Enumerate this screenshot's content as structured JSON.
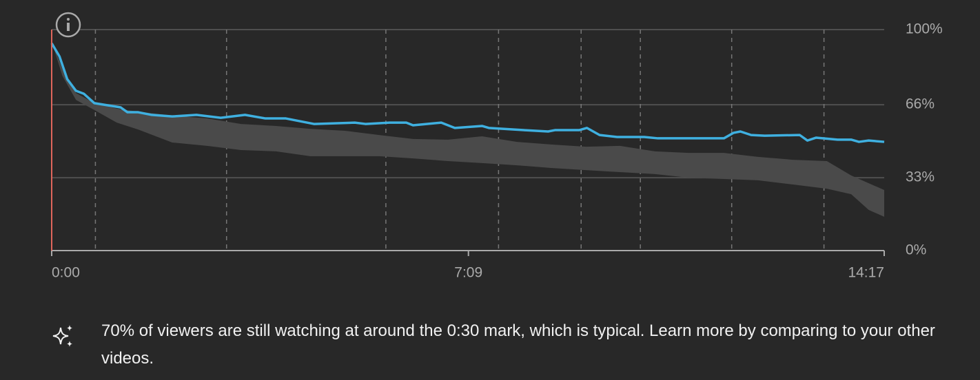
{
  "chart_data": {
    "type": "line",
    "xlim": [
      0,
      857
    ],
    "xticks": [
      {
        "value": 0,
        "label": "0:00"
      },
      {
        "value": 429,
        "label": "7:09"
      },
      {
        "value": 857,
        "label": "14:17"
      }
    ],
    "ylim": [
      0,
      100
    ],
    "yticks": [
      {
        "value": 0,
        "label": "0%"
      },
      {
        "value": 33,
        "label": "33%"
      },
      {
        "value": 66,
        "label": "66%"
      },
      {
        "value": 100,
        "label": "100%"
      }
    ],
    "grid": true,
    "x": [
      0,
      8,
      16,
      25,
      33,
      44,
      71,
      78,
      89,
      103,
      124,
      149,
      174,
      199,
      220,
      241,
      270,
      312,
      323,
      348,
      365,
      372,
      401,
      415,
      443,
      450,
      486,
      511,
      518,
      543,
      551,
      564,
      582,
      610,
      624,
      692,
      702,
      709,
      720,
      734,
      770,
      778,
      787,
      809,
      823,
      831,
      841,
      857
    ],
    "series": [
      {
        "color": "#3fb0e0",
        "values": [
          93.8,
          87.9,
          77.6,
          72.3,
          71.0,
          66.7,
          64.8,
          62.6,
          62.6,
          61.4,
          60.7,
          61.4,
          60.1,
          61.4,
          59.8,
          59.8,
          57.3,
          57.9,
          57.3,
          57.9,
          57.9,
          56.7,
          57.9,
          55.5,
          56.4,
          55.5,
          54.5,
          53.9,
          54.5,
          54.5,
          55.5,
          52.3,
          51.4,
          51.4,
          50.8,
          50.8,
          53.3,
          53.9,
          52.3,
          52.0,
          52.3,
          49.8,
          51.1,
          50.2,
          50.2,
          49.2,
          49.8,
          49.2
        ]
      }
    ],
    "typical_range": {
      "color": "#4a4a4a",
      "x": [
        0,
        11,
        25,
        44,
        67,
        89,
        124,
        160,
        195,
        231,
        266,
        302,
        337,
        372,
        408,
        443,
        479,
        514,
        550,
        585,
        621,
        656,
        692,
        727,
        763,
        798,
        823,
        841,
        857
      ],
      "upper": [
        94.7,
        82.2,
        71.3,
        66.7,
        64.2,
        62.9,
        61.1,
        59.8,
        57.3,
        56.4,
        55.1,
        54.2,
        52.3,
        50.5,
        50.2,
        51.7,
        49.2,
        48.0,
        47.0,
        47.4,
        44.9,
        44.2,
        44.2,
        42.4,
        41.1,
        40.5,
        34.0,
        30.5,
        27.4
      ],
      "lower": [
        94.7,
        79.1,
        68.2,
        63.6,
        57.9,
        54.8,
        48.9,
        47.4,
        45.5,
        44.9,
        42.7,
        42.7,
        42.7,
        41.7,
        40.5,
        39.6,
        38.6,
        37.4,
        36.4,
        35.5,
        34.6,
        33.0,
        32.4,
        31.8,
        29.9,
        28.0,
        25.5,
        18.4,
        15.3
      ]
    },
    "markers": [
      45,
      180,
      344,
      460,
      545,
      606,
      700,
      795
    ],
    "highlight_range": [
      0,
      34
    ],
    "insight": "70% of viewers are still watching at around the 0:30 mark, which is typical. Learn more by comparing to your other videos."
  }
}
